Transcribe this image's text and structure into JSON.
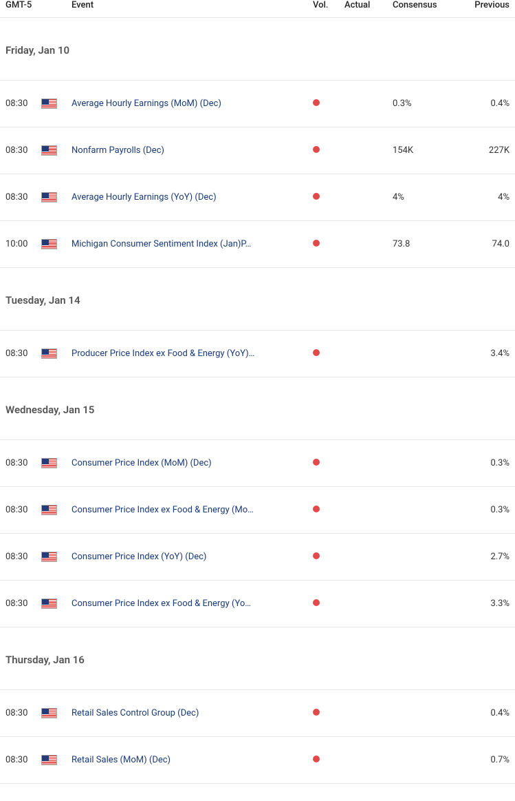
{
  "colors": {
    "vol_dot": "#e04a4a",
    "link": "#1a3b7a",
    "border": "#e5e6e8",
    "text": "#333333",
    "day_header": "#555555"
  },
  "columns": {
    "tz": "GMT-5",
    "event": "Event",
    "vol": "Vol.",
    "actual": "Actual",
    "consensus": "Consensus",
    "previous": "Previous"
  },
  "flag_icon": "us-flag",
  "groups": [
    {
      "date_label": "Friday, Jan 10",
      "rows": [
        {
          "time": "08:30",
          "flag": "us",
          "event": "Average Hourly Earnings (MoM) (Dec)",
          "vol": "high",
          "actual": "",
          "consensus": "0.3%",
          "previous": "0.4%"
        },
        {
          "time": "08:30",
          "flag": "us",
          "event": "Nonfarm Payrolls (Dec)",
          "vol": "high",
          "actual": "",
          "consensus": "154K",
          "previous": "227K"
        },
        {
          "time": "08:30",
          "flag": "us",
          "event": "Average Hourly Earnings (YoY) (Dec)",
          "vol": "high",
          "actual": "",
          "consensus": "4%",
          "previous": "4%"
        },
        {
          "time": "10:00",
          "flag": "us",
          "event": "Michigan Consumer Sentiment Index (Jan)P…",
          "vol": "high",
          "actual": "",
          "consensus": "73.8",
          "previous": "74.0"
        }
      ]
    },
    {
      "date_label": "Tuesday, Jan 14",
      "rows": [
        {
          "time": "08:30",
          "flag": "us",
          "event": "Producer Price Index ex Food & Energy (YoY)…",
          "vol": "high",
          "actual": "",
          "consensus": "",
          "previous": "3.4%"
        }
      ]
    },
    {
      "date_label": "Wednesday, Jan 15",
      "rows": [
        {
          "time": "08:30",
          "flag": "us",
          "event": "Consumer Price Index (MoM) (Dec)",
          "vol": "high",
          "actual": "",
          "consensus": "",
          "previous": "0.3%"
        },
        {
          "time": "08:30",
          "flag": "us",
          "event": "Consumer Price Index ex Food & Energy (Mo…",
          "vol": "high",
          "actual": "",
          "consensus": "",
          "previous": "0.3%"
        },
        {
          "time": "08:30",
          "flag": "us",
          "event": "Consumer Price Index (YoY) (Dec)",
          "vol": "high",
          "actual": "",
          "consensus": "",
          "previous": "2.7%"
        },
        {
          "time": "08:30",
          "flag": "us",
          "event": "Consumer Price Index ex Food & Energy (Yo…",
          "vol": "high",
          "actual": "",
          "consensus": "",
          "previous": "3.3%"
        }
      ]
    },
    {
      "date_label": "Thursday, Jan 16",
      "rows": [
        {
          "time": "08:30",
          "flag": "us",
          "event": "Retail Sales Control Group (Dec)",
          "vol": "high",
          "actual": "",
          "consensus": "",
          "previous": "0.4%"
        },
        {
          "time": "08:30",
          "flag": "us",
          "event": "Retail Sales (MoM) (Dec)",
          "vol": "high",
          "actual": "",
          "consensus": "",
          "previous": "0.7%"
        }
      ]
    }
  ]
}
